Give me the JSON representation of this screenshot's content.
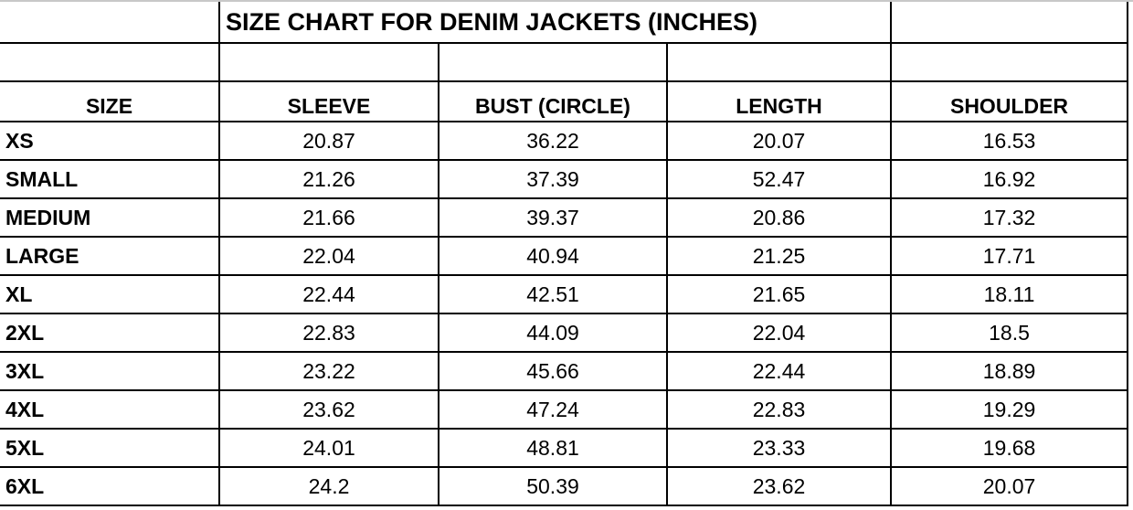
{
  "title": "SIZE CHART FOR DENIM JACKETS (INCHES)",
  "columns": [
    "SIZE",
    "SLEEVE",
    "BUST (CIRCLE)",
    "LENGTH",
    "SHOULDER"
  ],
  "rows": [
    [
      "XS",
      "20.87",
      "36.22",
      "20.07",
      "16.53"
    ],
    [
      "SMALL",
      "21.26",
      "37.39",
      "52.47",
      "16.92"
    ],
    [
      "MEDIUM",
      "21.66",
      "39.37",
      "20.86",
      "17.32"
    ],
    [
      "LARGE",
      "22.04",
      "40.94",
      "21.25",
      "17.71"
    ],
    [
      "XL",
      "22.44",
      "42.51",
      "21.65",
      "18.11"
    ],
    [
      "2XL",
      "22.83",
      "44.09",
      "22.04",
      "18.5"
    ],
    [
      "3XL",
      "23.22",
      "45.66",
      "22.44",
      "18.89"
    ],
    [
      "4XL",
      "23.62",
      "47.24",
      "22.83",
      "19.29"
    ],
    [
      "5XL",
      "24.01",
      "48.81",
      "23.33",
      "19.68"
    ],
    [
      "6XL",
      "24.2",
      "50.39",
      "23.62",
      "20.07"
    ]
  ]
}
